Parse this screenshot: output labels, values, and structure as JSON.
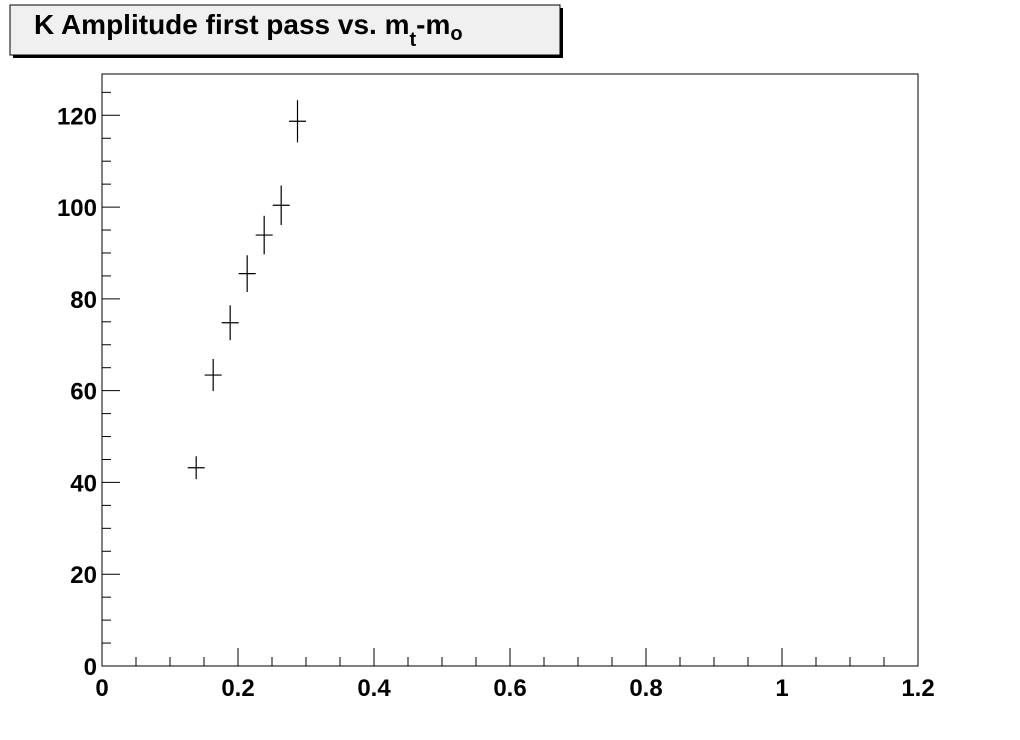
{
  "chart_data": {
    "type": "scatter",
    "title": {
      "main": "K Amplitude first pass vs. m",
      "sub1": "t",
      "mid": "-m",
      "sub2": "o"
    },
    "xlabel": "",
    "ylabel": "",
    "xlim": [
      0,
      1.2
    ],
    "ylim": [
      0,
      129
    ],
    "x_ticks": [
      0,
      0.2,
      0.4,
      0.6,
      0.8,
      1,
      1.2
    ],
    "x_tick_labels": [
      "0",
      "0.2",
      "0.4",
      "0.6",
      "0.8",
      "1",
      "1.2"
    ],
    "y_ticks": [
      0,
      20,
      40,
      60,
      80,
      100,
      120
    ],
    "y_tick_labels": [
      "0",
      "20",
      "40",
      "60",
      "80",
      "100",
      "120"
    ],
    "grid": false,
    "marker": "cross",
    "colors": {
      "marker": "#000000",
      "frame": "#000000",
      "title_box_fill": "#f0f0f0"
    },
    "series": [
      {
        "x": [
          0.1385,
          0.1635,
          0.1885,
          0.2135,
          0.2385,
          0.2635,
          0.2875
        ],
        "y": [
          43.2,
          63.4,
          74.8,
          85.5,
          93.9,
          100.4,
          118.7
        ],
        "y_err": [
          2.5,
          3.5,
          3.8,
          4.0,
          4.2,
          4.3,
          4.6
        ],
        "x_err": [
          0.0125,
          0.0125,
          0.0125,
          0.0125,
          0.0125,
          0.0125,
          0.0125
        ]
      }
    ]
  }
}
